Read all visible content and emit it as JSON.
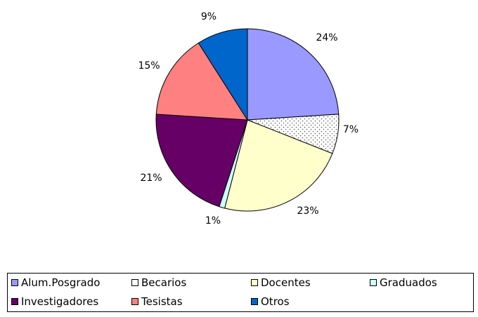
{
  "chart_data": {
    "type": "pie",
    "title": "",
    "slices": [
      {
        "label": "Alum.Posgrado",
        "value": 24,
        "label_text": "24%",
        "color": "#9999ff"
      },
      {
        "label": "Becarios",
        "value": 7,
        "label_text": "7%",
        "color": "#ffffff",
        "pattern": "dots"
      },
      {
        "label": "Docentes",
        "value": 23,
        "label_text": "23%",
        "color": "#ffffcc"
      },
      {
        "label": "Graduados",
        "value": 1,
        "label_text": "1%",
        "color": "#ccffff"
      },
      {
        "label": "Investigadores",
        "value": 21,
        "label_text": "21%",
        "color": "#660066"
      },
      {
        "label": "Tesistas",
        "value": 15,
        "label_text": "15%",
        "color": "#ff8080"
      },
      {
        "label": "Otros",
        "value": 9,
        "label_text": "9%",
        "color": "#0066cc"
      }
    ],
    "legend": {
      "placement": "bottom",
      "items": [
        "Alum.Posgrado",
        "Becarios",
        "Docentes",
        "Graduados",
        "Investigadores",
        "Tesistas",
        "Otros"
      ]
    }
  }
}
